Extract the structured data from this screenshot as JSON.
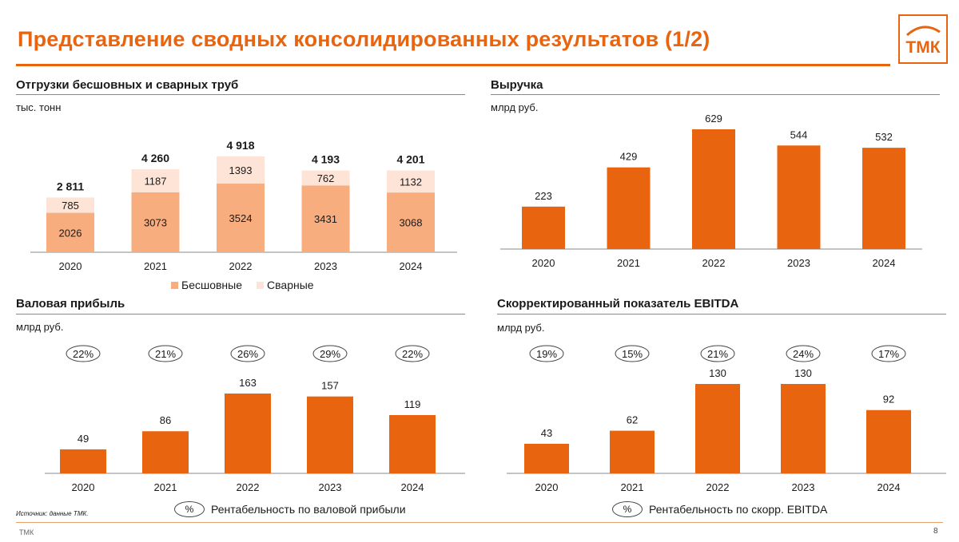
{
  "title": "Представление сводных консолидированных результатов (1/2)",
  "logo_text": "ТМК",
  "colors": {
    "accent": "#e8640f",
    "seamless": "#f7ad7e",
    "welded": "#fde4d6",
    "bar": "#e8640f"
  },
  "panels": {
    "shipments": {
      "title": "Отгрузки бесшовных и сварных труб",
      "unit": "тыс. тонн"
    },
    "revenue": {
      "title": "Выручка",
      "unit": "млрд руб."
    },
    "gross": {
      "title": "Валовая прибыль",
      "unit": "млрд руб."
    },
    "ebitda": {
      "title": "Скорректированный показатель EBITDA",
      "unit": "млрд руб."
    }
  },
  "legends": {
    "seamless": "Бесшовные",
    "welded": "Сварные",
    "pct_symbol": "%",
    "gross_margin": "Рентабельность по валовой прибыли",
    "ebitda_margin": "Рентабельность по скорр. EBITDA"
  },
  "footer": {
    "source": "Источник: данные ТМК.",
    "company": "ТМК",
    "page_number": "8"
  },
  "chart_data": [
    {
      "id": "shipments",
      "type": "bar",
      "stacked": true,
      "title": "Отгрузки бесшовных и сварных труб",
      "ylabel": "тыс. тонн",
      "categories": [
        "2020",
        "2021",
        "2022",
        "2023",
        "2024"
      ],
      "series": [
        {
          "name": "Бесшовные",
          "values": [
            2026,
            3073,
            3524,
            3431,
            3068
          ]
        },
        {
          "name": "Сварные",
          "values": [
            785,
            1187,
            1393,
            762,
            1132
          ]
        }
      ],
      "totals": [
        "2 811",
        "4 260",
        "4 918",
        "4 193",
        "4 201"
      ],
      "ylim": [
        0,
        4918
      ]
    },
    {
      "id": "revenue",
      "type": "bar",
      "title": "Выручка",
      "ylabel": "млрд руб.",
      "categories": [
        "2020",
        "2021",
        "2022",
        "2023",
        "2024"
      ],
      "values": [
        223,
        429,
        629,
        544,
        532
      ],
      "ylim": [
        0,
        629
      ]
    },
    {
      "id": "gross",
      "type": "bar",
      "title": "Валовая прибыль",
      "ylabel": "млрд руб.",
      "categories": [
        "2020",
        "2021",
        "2022",
        "2023",
        "2024"
      ],
      "values": [
        49,
        86,
        163,
        157,
        119
      ],
      "margins": [
        "22%",
        "21%",
        "26%",
        "29%",
        "22%"
      ],
      "ylim": [
        0,
        163
      ]
    },
    {
      "id": "ebitda",
      "type": "bar",
      "title": "Скорректированный показатель EBITDA",
      "ylabel": "млрд руб.",
      "categories": [
        "2020",
        "2021",
        "2022",
        "2023",
        "2024"
      ],
      "values": [
        43,
        62,
        130,
        130,
        92
      ],
      "margins": [
        "19%",
        "15%",
        "21%",
        "24%",
        "17%"
      ],
      "ylim": [
        0,
        130
      ]
    }
  ]
}
